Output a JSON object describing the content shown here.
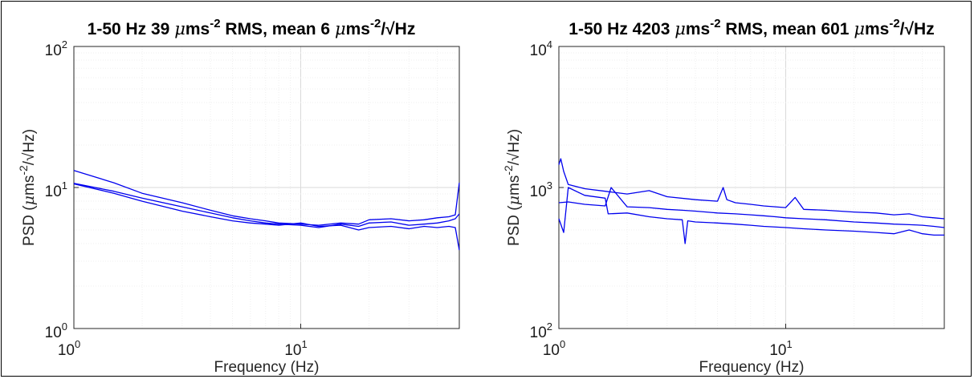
{
  "chart_data": [
    {
      "type": "line",
      "title_parts": [
        "1-50 Hz 39 ",
        "μ",
        "ms",
        "-2",
        " RMS, mean 6 ",
        "μ",
        "ms",
        "-2",
        "/√Hz"
      ],
      "xlabel": "Frequency (Hz)",
      "ylabel_parts": [
        "PSD (",
        "μ",
        "ms",
        "-2",
        "/√Hz)"
      ],
      "xscale": "log",
      "yscale": "log",
      "xlim": [
        1,
        50
      ],
      "ylim": [
        1,
        100
      ],
      "x_ticks": [
        {
          "base": "10",
          "exp": "0",
          "value": 1
        },
        {
          "base": "10",
          "exp": "1",
          "value": 10
        }
      ],
      "y_ticks": [
        {
          "base": "10",
          "exp": "0",
          "value": 1
        },
        {
          "base": "10",
          "exp": "1",
          "value": 10
        },
        {
          "base": "10",
          "exp": "2",
          "value": 100
        }
      ],
      "grid": true,
      "line_color": "#0000ee",
      "series": [
        {
          "x": [
            1,
            1.5,
            2,
            3,
            4,
            5,
            6,
            7,
            8,
            10,
            12,
            15,
            18,
            20,
            25,
            30,
            35,
            40,
            45,
            48,
            50
          ],
          "y": [
            13.2,
            10.8,
            9.1,
            7.8,
            6.9,
            6.3,
            6.0,
            5.8,
            5.6,
            5.5,
            5.4,
            5.6,
            5.5,
            5.9,
            6.0,
            5.8,
            5.9,
            6.1,
            6.2,
            6.4,
            10.8
          ]
        },
        {
          "x": [
            1,
            1.5,
            2,
            3,
            4,
            5,
            6,
            7,
            8,
            10,
            12,
            15,
            18,
            20,
            25,
            30,
            35,
            40,
            45,
            48,
            50
          ],
          "y": [
            10.7,
            9.4,
            8.4,
            7.3,
            6.6,
            6.1,
            5.8,
            5.6,
            5.5,
            5.4,
            5.2,
            5.5,
            5.3,
            5.6,
            5.7,
            5.4,
            5.5,
            5.6,
            5.8,
            6.0,
            6.5
          ]
        },
        {
          "x": [
            1,
            1.5,
            2,
            3,
            4,
            5,
            6,
            7,
            8,
            10,
            12,
            15,
            18,
            20,
            25,
            30,
            35,
            40,
            45,
            48,
            50
          ],
          "y": [
            10.6,
            9.1,
            8.0,
            6.8,
            6.2,
            5.8,
            5.6,
            5.5,
            5.4,
            5.6,
            5.3,
            5.4,
            5.0,
            5.2,
            5.3,
            5.1,
            5.3,
            5.2,
            5.3,
            5.2,
            3.6
          ]
        }
      ]
    },
    {
      "type": "line",
      "title_parts": [
        "1-50 Hz 4203 ",
        "μ",
        "ms",
        "-2",
        " RMS, mean 601 ",
        "μ",
        "ms",
        "-2",
        "/√Hz"
      ],
      "xlabel": "Frequency (Hz)",
      "ylabel_parts": [
        "PSD (",
        "μ",
        "ms",
        "-2",
        "/√Hz)"
      ],
      "xscale": "log",
      "yscale": "log",
      "xlim": [
        1,
        50
      ],
      "ylim": [
        100,
        10000
      ],
      "x_ticks": [
        {
          "base": "10",
          "exp": "0",
          "value": 1
        },
        {
          "base": "10",
          "exp": "1",
          "value": 10
        }
      ],
      "y_ticks": [
        {
          "base": "10",
          "exp": "2",
          "value": 100
        },
        {
          "base": "10",
          "exp": "3",
          "value": 1000
        },
        {
          "base": "10",
          "exp": "4",
          "value": 10000
        }
      ],
      "grid": true,
      "line_color": "#0000ee",
      "series": [
        {
          "x": [
            1,
            1.02,
            1.05,
            1.1,
            1.3,
            1.6,
            2,
            2.5,
            3,
            4,
            5,
            5.3,
            5.5,
            6,
            7,
            8,
            10,
            11,
            12,
            15,
            20,
            25,
            30,
            35,
            40,
            45,
            50
          ],
          "y": [
            1450,
            1600,
            1300,
            1050,
            980,
            940,
            900,
            950,
            860,
            820,
            800,
            1000,
            820,
            780,
            760,
            740,
            720,
            850,
            700,
            690,
            670,
            660,
            640,
            650,
            620,
            610,
            600
          ]
        },
        {
          "x": [
            1,
            1.1,
            1.3,
            1.6,
            1.7,
            2,
            2.5,
            3,
            3.5,
            4,
            5,
            6,
            7,
            8,
            9,
            10,
            12,
            15,
            20,
            25,
            30,
            35,
            40,
            45,
            50
          ],
          "y": [
            780,
            790,
            760,
            740,
            1000,
            730,
            720,
            700,
            690,
            680,
            660,
            650,
            640,
            630,
            620,
            610,
            600,
            590,
            570,
            560,
            550,
            545,
            540,
            530,
            520
          ]
        },
        {
          "x": [
            1,
            1.05,
            1.1,
            1.3,
            1.6,
            1.65,
            2,
            2.5,
            3,
            3.5,
            3.6,
            3.7,
            4,
            5,
            6,
            7,
            8,
            10,
            12,
            15,
            20,
            25,
            30,
            35,
            40,
            45,
            50
          ],
          "y": [
            600,
            480,
            1000,
            880,
            840,
            650,
            660,
            620,
            600,
            590,
            400,
            580,
            570,
            560,
            550,
            540,
            530,
            520,
            510,
            500,
            490,
            480,
            470,
            500,
            470,
            460,
            460
          ]
        }
      ]
    }
  ]
}
